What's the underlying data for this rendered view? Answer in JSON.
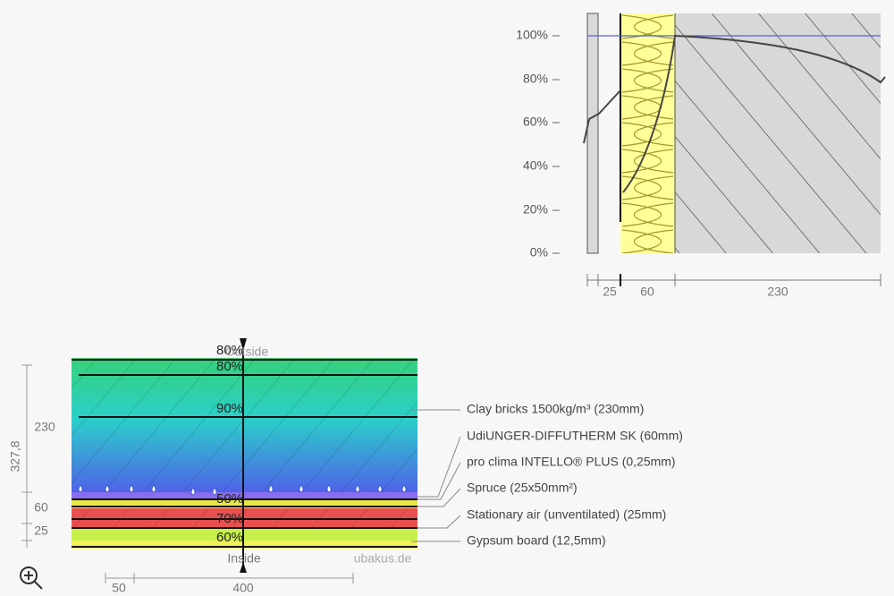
{
  "humidity_chart": {
    "yticks": [
      "100%",
      "80%",
      "60%",
      "40%",
      "20%",
      "0%"
    ],
    "dimensions": [
      "25",
      "60",
      "230"
    ]
  },
  "section": {
    "outside_label": "Outside",
    "inside_label": "Inside",
    "isolines": [
      "80%",
      "80%",
      "90%",
      "50%",
      "70%",
      "60%"
    ],
    "dimensions_vertical": [
      "327,8",
      "230",
      "60",
      "25"
    ],
    "dimensions_horizontal": [
      "50",
      "400"
    ],
    "watermark": "ubakus.de",
    "layers": [
      "Clay bricks 1500kg/m³ (230mm)",
      "UdiUNGER-DIFFUTHERM SK (60mm)",
      "pro clima INTELLO® PLUS (0,25mm)",
      "Spruce (25x50mm²)",
      "Stationary air (unventilated) (25mm)",
      "Gypsum board (12,5mm)"
    ]
  }
}
